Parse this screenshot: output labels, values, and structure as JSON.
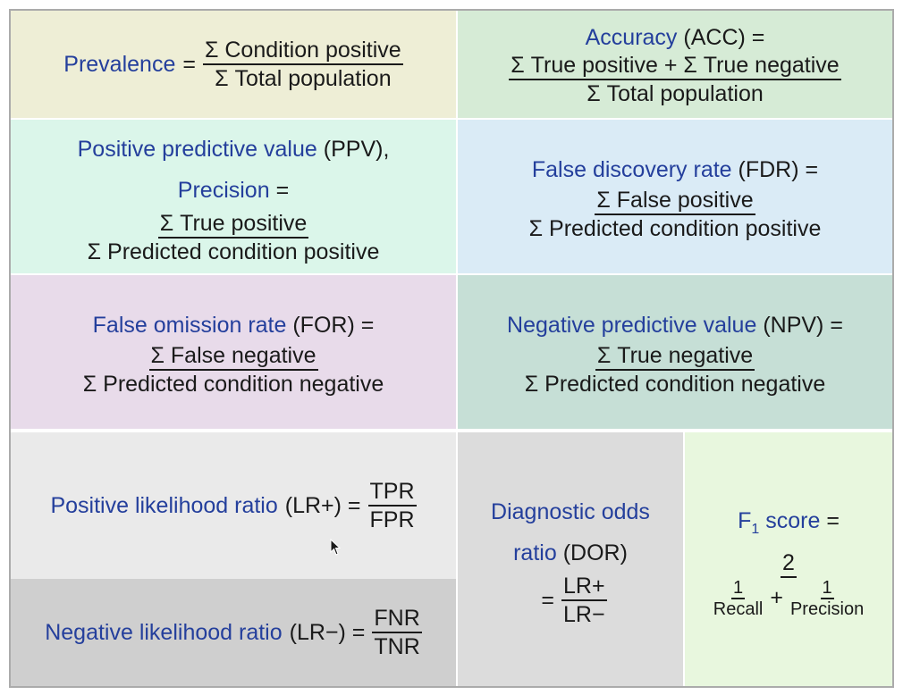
{
  "colors": {
    "yellow": "#eeeed6",
    "green1": "#d6ebd6",
    "mint": "#dbf6ea",
    "blue": "#daebf6",
    "purple": "#e8dbea",
    "teal": "#c6dfd6",
    "light_gray": "#eaeaea",
    "mid_gray": "#cfcfcf",
    "gray": "#dcdcdc",
    "light_green": "#e8f7de",
    "link": "#243f9c",
    "grid": "#ababab"
  },
  "prevalence": {
    "name": "Prevalence",
    "eq": "=",
    "num": "Σ Condition positive",
    "den": "Σ Total population"
  },
  "accuracy": {
    "name": "Accuracy",
    "abbr": "(ACC) =",
    "num": "Σ True positive + Σ True negative",
    "den": "Σ Total population"
  },
  "ppv": {
    "name": "Positive predictive value",
    "abbr": "(PPV),",
    "name2": "Precision",
    "eq": "=",
    "num": "Σ True positive",
    "den": "Σ Predicted condition positive"
  },
  "fdr": {
    "name": "False discovery rate",
    "abbr": "(FDR) =",
    "num": "Σ False positive",
    "den": "Σ Predicted condition positive"
  },
  "for": {
    "name": "False omission rate",
    "abbr": "(FOR) =",
    "num": "Σ False negative",
    "den": "Σ Predicted condition negative"
  },
  "npv": {
    "name": "Negative predictive value",
    "abbr": "(NPV) =",
    "num": "Σ True negative",
    "den": "Σ Predicted condition negative"
  },
  "lr_pos": {
    "name": "Positive likelihood ratio",
    "abbr": "(LR+) =",
    "num": "TPR",
    "den": "FPR"
  },
  "lr_neg": {
    "name": "Negative likelihood ratio",
    "abbr": "(LR−) =",
    "num": "FNR",
    "den": "TNR"
  },
  "dor": {
    "name1": "Diagnostic odds",
    "name2": "ratio",
    "abbr": "(DOR)",
    "eq": "=",
    "num": "LR+",
    "den": "LR−"
  },
  "f1": {
    "name": "F",
    "sub": "1",
    "name_rest": " score",
    "eq": "=",
    "num": "2",
    "plus": "+",
    "t1_num": "1",
    "t1_den": "Recall",
    "t2_num": "1",
    "t2_den": "Precision"
  }
}
